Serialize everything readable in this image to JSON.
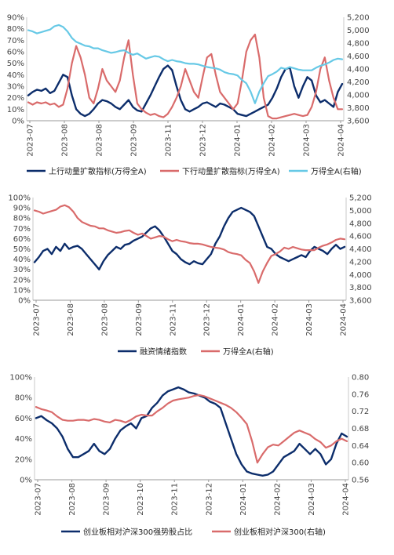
{
  "colors": {
    "navy": "#0c2d6b",
    "red": "#d96b6b",
    "lightblue": "#67c9e6",
    "axis": "#444444",
    "grid": "#d9d9d9"
  },
  "chart_data": [
    {
      "type": "line",
      "x_ticks": [
        "2023-07",
        "2023-08",
        "2023-08",
        "2023-09",
        "2023-11",
        "2023-12",
        "2024-01",
        "2024-02",
        "2024-03",
        "2024-04"
      ],
      "ylim": [
        0,
        90
      ],
      "y_ticks": [
        "0%",
        "10%",
        "20%",
        "30%",
        "40%",
        "50%",
        "60%",
        "70%",
        "80%",
        "90%"
      ],
      "y2lim": [
        3600,
        5200
      ],
      "y2_ticks": [
        "3,600",
        "3,800",
        "4,000",
        "4,200",
        "4,400",
        "4,600",
        "4,800",
        "5,000",
        "5,200"
      ],
      "series": [
        {
          "name": "上行动量扩散指标(万得全A)",
          "axis": "left",
          "color": "navy",
          "values": [
            22,
            25,
            27,
            26,
            28,
            24,
            26,
            33,
            40,
            38,
            22,
            10,
            6,
            4,
            6,
            10,
            15,
            18,
            17,
            15,
            12,
            10,
            14,
            18,
            12,
            9,
            8,
            15,
            22,
            30,
            38,
            45,
            48,
            44,
            30,
            18,
            10,
            8,
            10,
            12,
            15,
            16,
            14,
            12,
            15,
            14,
            12,
            10,
            6,
            5,
            4,
            6,
            8,
            10,
            12,
            14,
            20,
            28,
            38,
            45,
            46,
            30,
            20,
            30,
            38,
            35,
            22,
            16,
            18,
            15,
            12,
            25,
            32
          ]
        },
        {
          "name": "下行动量扩散指标(万得全A)",
          "axis": "left",
          "color": "red",
          "values": [
            16,
            14,
            16,
            15,
            16,
            14,
            15,
            12,
            14,
            28,
            50,
            65,
            55,
            40,
            20,
            15,
            28,
            45,
            35,
            30,
            25,
            35,
            55,
            70,
            40,
            15,
            10,
            7,
            5,
            6,
            4,
            3,
            6,
            12,
            20,
            30,
            45,
            35,
            25,
            20,
            38,
            55,
            58,
            40,
            25,
            20,
            15,
            10,
            15,
            35,
            60,
            70,
            75,
            55,
            20,
            4,
            2,
            2,
            3,
            4,
            5,
            6,
            5,
            4,
            5,
            12,
            25,
            45,
            55,
            35,
            20,
            10,
            10
          ]
        },
        {
          "name": "万得全A(右轴)",
          "axis": "right",
          "color": "lightblue",
          "values": [
            5000,
            4980,
            4950,
            4970,
            4990,
            5010,
            5060,
            5080,
            5050,
            4980,
            4880,
            4820,
            4790,
            4760,
            4750,
            4720,
            4720,
            4690,
            4670,
            4650,
            4660,
            4680,
            4690,
            4650,
            4620,
            4640,
            4600,
            4560,
            4580,
            4600,
            4590,
            4550,
            4520,
            4540,
            4520,
            4510,
            4490,
            4480,
            4480,
            4470,
            4450,
            4430,
            4420,
            4410,
            4390,
            4350,
            4330,
            4320,
            4300,
            4230,
            4180,
            4050,
            3870,
            4050,
            4180,
            4290,
            4320,
            4360,
            4420,
            4400,
            4430,
            4410,
            4390,
            4380,
            4380,
            4380,
            4420,
            4450,
            4470,
            4500,
            4540,
            4560,
            4550
          ]
        }
      ]
    },
    {
      "type": "line",
      "x_ticks": [
        "2023-07",
        "2023-08",
        "2023-08",
        "2023-09",
        "2023-11",
        "2023-12",
        "2024-01",
        "2024-02",
        "2024-03",
        "2024-04"
      ],
      "ylim": [
        0,
        100
      ],
      "y_ticks": [
        "0%",
        "10%",
        "20%",
        "30%",
        "40%",
        "50%",
        "60%",
        "70%",
        "80%",
        "90%",
        "100%"
      ],
      "y2lim": [
        3600,
        5200
      ],
      "y2_ticks": [
        "3,600",
        "3,800",
        "4,000",
        "4,200",
        "4,400",
        "4,600",
        "4,800",
        "5,000",
        "5,200"
      ],
      "series": [
        {
          "name": "融资情绪指数",
          "axis": "left",
          "color": "navy",
          "values": [
            37,
            42,
            48,
            50,
            45,
            52,
            48,
            55,
            50,
            52,
            53,
            50,
            45,
            40,
            35,
            30,
            38,
            44,
            48,
            52,
            50,
            54,
            55,
            58,
            60,
            62,
            66,
            70,
            72,
            68,
            62,
            55,
            48,
            45,
            40,
            37,
            35,
            38,
            36,
            35,
            40,
            45,
            55,
            62,
            72,
            80,
            86,
            88,
            90,
            88,
            86,
            82,
            72,
            62,
            52,
            50,
            45,
            42,
            40,
            38,
            40,
            42,
            44,
            42,
            48,
            52,
            50,
            48,
            45,
            50,
            54,
            50,
            52
          ]
        },
        {
          "name": "万得全A(右轴)",
          "axis": "right",
          "color": "red",
          "values": [
            5000,
            4980,
            4950,
            4970,
            4990,
            5010,
            5060,
            5080,
            5050,
            4980,
            4880,
            4820,
            4790,
            4760,
            4750,
            4720,
            4720,
            4690,
            4670,
            4650,
            4660,
            4680,
            4690,
            4650,
            4620,
            4640,
            4600,
            4560,
            4580,
            4600,
            4590,
            4550,
            4520,
            4540,
            4520,
            4510,
            4490,
            4480,
            4480,
            4470,
            4450,
            4430,
            4420,
            4410,
            4390,
            4350,
            4330,
            4320,
            4300,
            4230,
            4180,
            4050,
            3870,
            4050,
            4180,
            4290,
            4320,
            4360,
            4420,
            4400,
            4430,
            4410,
            4390,
            4380,
            4380,
            4380,
            4420,
            4450,
            4470,
            4500,
            4540,
            4560,
            4550
          ]
        }
      ]
    },
    {
      "type": "line",
      "x_ticks": [
        "2023-07",
        "2023-08",
        "2023-09",
        "2023-10",
        "2023-11",
        "2023-12",
        "2024-01",
        "2024-02",
        "2024-03",
        "2024-04"
      ],
      "ylim": [
        0,
        100
      ],
      "y_ticks": [
        "0%",
        "20%",
        "40%",
        "60%",
        "80%",
        "100%"
      ],
      "y2lim": [
        0.56,
        0.8
      ],
      "y2_ticks": [
        "0.56",
        "0.60",
        "0.64",
        "0.68",
        "0.72",
        "0.76",
        "0.80"
      ],
      "series": [
        {
          "name": "创业板相对沪深300强势股占比",
          "axis": "left",
          "color": "navy",
          "values": [
            60,
            62,
            58,
            55,
            50,
            42,
            30,
            22,
            22,
            25,
            28,
            35,
            28,
            25,
            30,
            40,
            48,
            52,
            55,
            50,
            60,
            62,
            70,
            75,
            82,
            86,
            88,
            90,
            88,
            85,
            84,
            82,
            80,
            76,
            74,
            70,
            55,
            40,
            25,
            15,
            8,
            6,
            5,
            4,
            5,
            8,
            15,
            22,
            25,
            28,
            35,
            30,
            25,
            30,
            25,
            15,
            20,
            35,
            45,
            42
          ]
        },
        {
          "name": "创业板相对沪深300(右轴)",
          "axis": "right",
          "color": "red",
          "values": [
            0.73,
            0.725,
            0.722,
            0.718,
            0.708,
            0.7,
            0.698,
            0.698,
            0.7,
            0.7,
            0.698,
            0.702,
            0.7,
            0.696,
            0.694,
            0.7,
            0.698,
            0.694,
            0.7,
            0.708,
            0.712,
            0.71,
            0.71,
            0.72,
            0.728,
            0.738,
            0.745,
            0.748,
            0.75,
            0.752,
            0.756,
            0.758,
            0.755,
            0.75,
            0.745,
            0.74,
            0.735,
            0.728,
            0.718,
            0.705,
            0.69,
            0.65,
            0.6,
            0.62,
            0.636,
            0.642,
            0.64,
            0.65,
            0.66,
            0.67,
            0.675,
            0.67,
            0.665,
            0.655,
            0.648,
            0.635,
            0.64,
            0.65,
            0.656,
            0.65
          ]
        }
      ]
    }
  ]
}
